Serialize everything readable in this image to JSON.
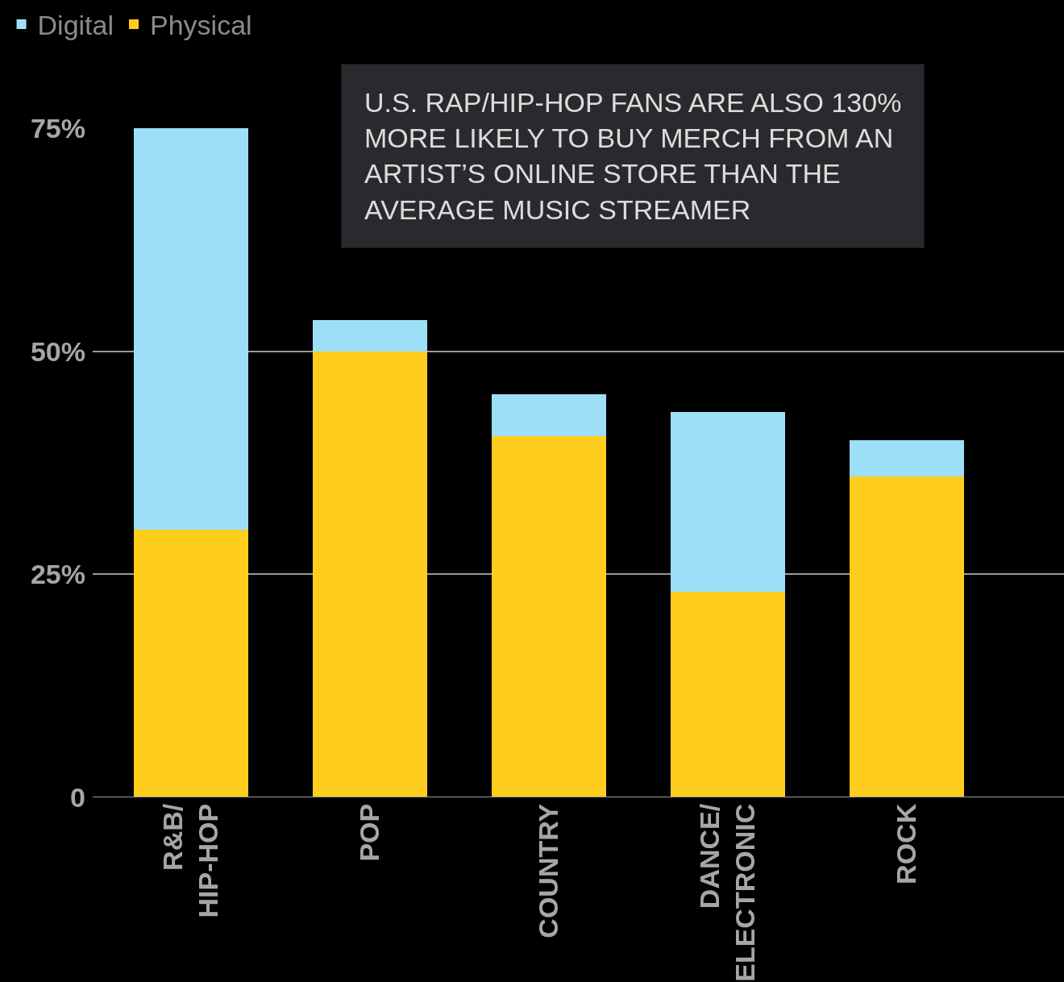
{
  "chart_data": {
    "type": "bar",
    "stacked": true,
    "categories": [
      "R&B/\nHIP-HOP",
      "POP",
      "COUNTRY",
      "DANCE/\nELECTRONIC",
      "ROCK"
    ],
    "series": [
      {
        "name": "Physical",
        "color": "#ffcd1c",
        "values": [
          30,
          50,
          40.5,
          23,
          36
        ]
      },
      {
        "name": "Digital",
        "color": "#9ddff7",
        "values": [
          45,
          3.5,
          4.7,
          20.2,
          4
        ]
      }
    ],
    "ylim": [
      0,
      75
    ],
    "yticks": [
      0,
      {
        "value": 25,
        "label": "25%"
      },
      {
        "value": 50,
        "label": "50%"
      },
      {
        "value": 75,
        "label": "75%"
      }
    ],
    "grid": "y",
    "legend": "top left",
    "annotations": [
      "U.S. RAP/HIP-HOP FANS ARE ALSO 130%\nMORE LIKELY TO BUY MERCH FROM AN\nARTIST’S ONLINE STORE THAN THE\nAVERAGE MUSIC STREAMER"
    ]
  }
}
